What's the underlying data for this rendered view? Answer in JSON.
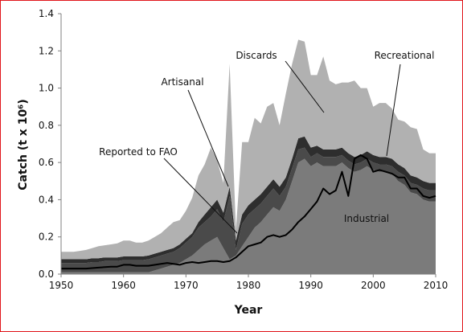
{
  "chart_data": {
    "type": "area",
    "xlabel": "Year",
    "ylabel": "Catch (t x 10⁶)",
    "xlim": [
      1950,
      2010
    ],
    "ylim": [
      0,
      1.4
    ],
    "xticks": [
      1950,
      1960,
      1970,
      1980,
      1990,
      2000,
      2010
    ],
    "yticks": [
      "0.0",
      "0.2",
      "0.4",
      "0.6",
      "0.8",
      "1.0",
      "1.2",
      "1.4"
    ],
    "stacking_order": [
      "Industrial",
      "Artisanal",
      "Recreational",
      "Discards"
    ],
    "x": [
      1950,
      1951,
      1952,
      1953,
      1954,
      1955,
      1956,
      1957,
      1958,
      1959,
      1960,
      1961,
      1962,
      1963,
      1964,
      1965,
      1966,
      1967,
      1968,
      1969,
      1970,
      1971,
      1972,
      1973,
      1974,
      1975,
      1976,
      1977,
      1978,
      1979,
      1980,
      1981,
      1982,
      1983,
      1984,
      1985,
      1986,
      1987,
      1988,
      1989,
      1990,
      1991,
      1992,
      1993,
      1994,
      1995,
      1996,
      1997,
      1998,
      1999,
      2000,
      2001,
      2002,
      2003,
      2004,
      2005,
      2006,
      2007,
      2008,
      2009,
      2010
    ],
    "series": [
      {
        "name": "Industrial",
        "values": [
          0.01,
          0.01,
          0.01,
          0.01,
          0.01,
          0.01,
          0.01,
          0.01,
          0.01,
          0.01,
          0.01,
          0.01,
          0.01,
          0.01,
          0.01,
          0.02,
          0.03,
          0.04,
          0.05,
          0.06,
          0.08,
          0.1,
          0.13,
          0.16,
          0.18,
          0.2,
          0.14,
          0.08,
          0.1,
          0.15,
          0.2,
          0.25,
          0.28,
          0.32,
          0.36,
          0.34,
          0.4,
          0.5,
          0.6,
          0.62,
          0.58,
          0.6,
          0.58,
          0.58,
          0.58,
          0.6,
          0.57,
          0.55,
          0.56,
          0.58,
          0.56,
          0.55,
          0.55,
          0.54,
          0.5,
          0.48,
          0.44,
          0.43,
          0.4,
          0.39,
          0.39
        ]
      },
      {
        "name": "Artisanal",
        "values": [
          0.05,
          0.05,
          0.05,
          0.05,
          0.05,
          0.055,
          0.055,
          0.06,
          0.06,
          0.06,
          0.065,
          0.065,
          0.065,
          0.065,
          0.07,
          0.07,
          0.07,
          0.07,
          0.07,
          0.08,
          0.09,
          0.1,
          0.12,
          0.12,
          0.13,
          0.15,
          0.14,
          0.34,
          0.03,
          0.12,
          0.12,
          0.1,
          0.1,
          0.1,
          0.1,
          0.08,
          0.07,
          0.07,
          0.07,
          0.06,
          0.05,
          0.05,
          0.05,
          0.05,
          0.05,
          0.04,
          0.04,
          0.04,
          0.04,
          0.04,
          0.04,
          0.04,
          0.04,
          0.04,
          0.05,
          0.05,
          0.05,
          0.05,
          0.06,
          0.06,
          0.06
        ]
      },
      {
        "name": "Recreational",
        "values": [
          0.02,
          0.02,
          0.02,
          0.02,
          0.02,
          0.02,
          0.02,
          0.02,
          0.02,
          0.02,
          0.02,
          0.02,
          0.02,
          0.02,
          0.02,
          0.02,
          0.02,
          0.02,
          0.02,
          0.02,
          0.02,
          0.02,
          0.03,
          0.04,
          0.05,
          0.05,
          0.05,
          0.05,
          0.05,
          0.05,
          0.05,
          0.05,
          0.05,
          0.05,
          0.05,
          0.05,
          0.05,
          0.05,
          0.06,
          0.06,
          0.05,
          0.04,
          0.04,
          0.04,
          0.04,
          0.04,
          0.04,
          0.04,
          0.04,
          0.04,
          0.04,
          0.04,
          0.04,
          0.04,
          0.04,
          0.04,
          0.04,
          0.04,
          0.04,
          0.04,
          0.04
        ]
      },
      {
        "name": "Discards",
        "values": [
          0.04,
          0.04,
          0.04,
          0.045,
          0.05,
          0.055,
          0.065,
          0.065,
          0.07,
          0.075,
          0.085,
          0.085,
          0.075,
          0.075,
          0.08,
          0.09,
          0.1,
          0.12,
          0.14,
          0.13,
          0.15,
          0.19,
          0.25,
          0.27,
          0.32,
          0.21,
          0.16,
          0.66,
          0.06,
          0.39,
          0.34,
          0.44,
          0.38,
          0.43,
          0.41,
          0.33,
          0.45,
          0.51,
          0.53,
          0.51,
          0.39,
          0.38,
          0.5,
          0.37,
          0.35,
          0.35,
          0.38,
          0.41,
          0.36,
          0.34,
          0.26,
          0.29,
          0.29,
          0.27,
          0.24,
          0.25,
          0.26,
          0.26,
          0.17,
          0.16,
          0.16
        ]
      }
    ],
    "reported_to_fao": {
      "name": "Reported to FAO",
      "x": [
        1950,
        1952,
        1954,
        1956,
        1958,
        1959,
        1960,
        1961,
        1962,
        1964,
        1966,
        1967,
        1968,
        1969,
        1970,
        1971,
        1972,
        1973,
        1974,
        1975,
        1976,
        1977,
        1978,
        1979,
        1980,
        1981,
        1982,
        1983,
        1984,
        1985,
        1986,
        1987,
        1988,
        1989,
        1990,
        1991,
        1992,
        1993,
        1994,
        1995,
        1996,
        1997,
        1998,
        1999,
        2000,
        2001,
        2002,
        2003,
        2004,
        2005,
        2006,
        2007,
        2008,
        2009,
        2010
      ],
      "values": [
        0.03,
        0.03,
        0.03,
        0.035,
        0.04,
        0.04,
        0.05,
        0.05,
        0.045,
        0.045,
        0.055,
        0.06,
        0.055,
        0.05,
        0.06,
        0.065,
        0.06,
        0.065,
        0.07,
        0.07,
        0.065,
        0.07,
        0.09,
        0.12,
        0.15,
        0.16,
        0.17,
        0.2,
        0.21,
        0.2,
        0.21,
        0.24,
        0.28,
        0.31,
        0.35,
        0.39,
        0.46,
        0.43,
        0.45,
        0.55,
        0.42,
        0.62,
        0.64,
        0.62,
        0.55,
        0.56,
        0.55,
        0.54,
        0.52,
        0.52,
        0.46,
        0.46,
        0.42,
        0.41,
        0.42
      ]
    },
    "colors": {
      "Industrial": "#7b7b7b",
      "Artisanal": "#4a4a4a",
      "Recreational": "#2e2e2e",
      "Discards": "#b1b1b1",
      "line": "#000000"
    },
    "annotations": [
      "Discards",
      "Recreational",
      "Artisanal",
      "Reported to FAO",
      "Industrial"
    ],
    "grid": false,
    "legend": "none"
  }
}
